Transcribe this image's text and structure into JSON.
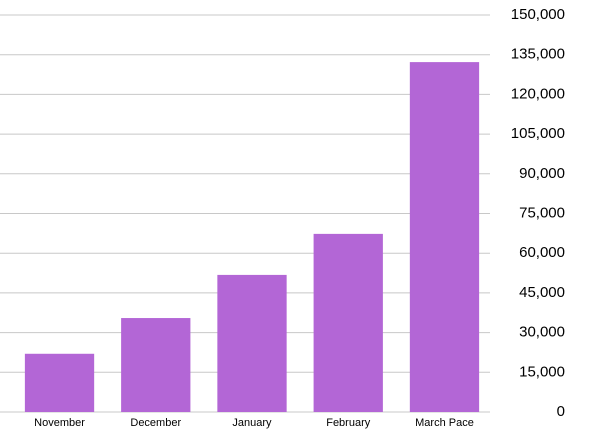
{
  "chart_data": {
    "type": "bar",
    "categories": [
      "November",
      "December",
      "January",
      "February",
      "March Pace"
    ],
    "values": [
      22000,
      35500,
      51800,
      67300,
      132200
    ],
    "color": "#b366d6",
    "ylim": [
      0,
      150000
    ],
    "yticks": [
      0,
      {
        "value": 15000,
        "label": "15,000"
      },
      {
        "value": 30000,
        "label": "30,000"
      },
      {
        "value": 45000,
        "label": "45,000"
      },
      {
        "value": 60000,
        "label": "60,000"
      },
      {
        "value": 75000,
        "label": "75,000"
      },
      {
        "value": 90000,
        "label": "90,000"
      },
      {
        "value": 105000,
        "label": "105,000"
      },
      {
        "value": 120000,
        "label": "120,000"
      },
      {
        "value": 135000,
        "label": "135,000"
      },
      {
        "value": 150000,
        "label": "150,000"
      }
    ],
    "grid": true
  }
}
